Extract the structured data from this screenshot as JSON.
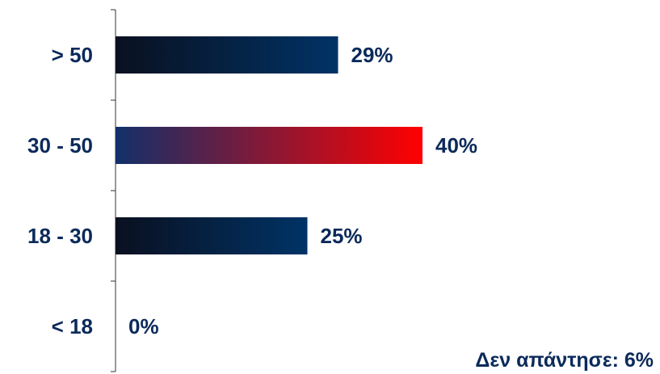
{
  "chart_data": {
    "type": "bar",
    "orientation": "horizontal",
    "categories": [
      "> 50",
      "30 - 50",
      "18 - 30",
      "< 18"
    ],
    "values": [
      29,
      40,
      25,
      0
    ],
    "value_labels": [
      "29%",
      "40%",
      "25%",
      "0%"
    ],
    "highlight_index": 1,
    "xlim": [
      0,
      100
    ],
    "grid": false,
    "colors": {
      "bar_dark": "#0a1020",
      "bar_main": "#003366",
      "highlight_start": "#12306a",
      "highlight_end": "#ff0000",
      "text": "#0b2a5a",
      "axis": "#333333"
    }
  },
  "footnote": "Δεν απάντησε: 6%"
}
